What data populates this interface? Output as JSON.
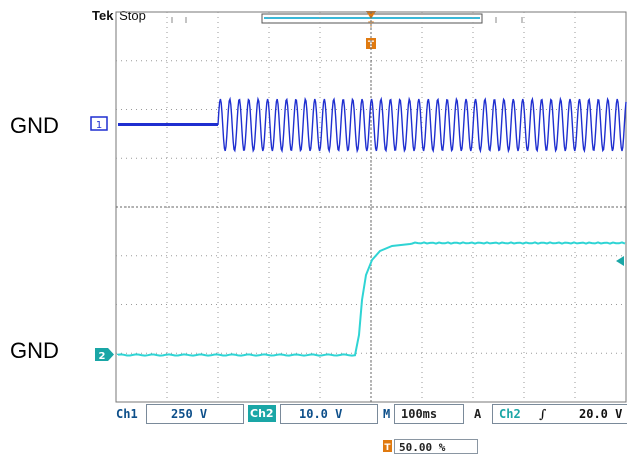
{
  "header": {
    "brand": "Tek",
    "run_state": "Stop"
  },
  "ground_labels": {
    "ch1": "GND",
    "ch2": "GND"
  },
  "markers": {
    "ch1": "1",
    "ch2": "2"
  },
  "status_bar": {
    "ch1_label": "Ch1",
    "ch1_scale": "250 V",
    "ch2_label": "Ch2",
    "ch2_scale": "10.0 V",
    "time_label": "M",
    "time_scale": "100ms",
    "trigger_mode": "A",
    "trigger_source": "Ch2",
    "trigger_slope": "∫",
    "trigger_level": "20.0 V"
  },
  "trigger_position": "50.00 %",
  "colors": {
    "ch1": "#1f2fd0",
    "ch2": "#2fd4d4",
    "grid": "#9a9a9a",
    "trigger_marker": "#e07a10",
    "status_text": "#0d4f8a"
  }
}
